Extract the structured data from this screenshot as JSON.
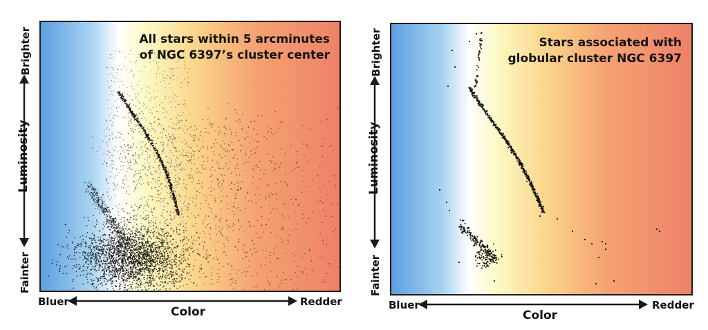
{
  "colors": {
    "gradient": [
      "#5c9fe0",
      "#a9d3f1",
      "#ffffff",
      "#fdf8c0",
      "#fbd48a",
      "#f5a272",
      "#ee8168"
    ],
    "stars": "#111111",
    "axis": "#1a1a1a"
  },
  "chart_data": [
    {
      "type": "scatter",
      "title": "All stars within 5 arcminutes of NGC 6397’s cluster center",
      "title_lines": [
        "All stars within 5 arcminutes",
        "of NGC 6397’s cluster center"
      ],
      "xlabel": "Color",
      "ylabel": "Luminosity",
      "x_left": "Bluer",
      "x_right": "Redder",
      "y_top": "Brighter",
      "y_bottom": "Fainter",
      "x_scale": "qualitative, blue to red",
      "y_scale": "qualitative, faint to bright",
      "grid": false,
      "features": {
        "main_sequence": "thin curved sequence from upper-left toward lower-middle",
        "white_dwarf_sequence": "faint diagonal trail at lower left",
        "field_cloud": "dense field population at lower left spreading toward red"
      }
    },
    {
      "type": "scatter",
      "title": "Stars associated with globular cluster NGC 6397",
      "title_lines": [
        "Stars associated with",
        "globular cluster NGC 6397"
      ],
      "xlabel": "Color",
      "ylabel": "Luminosity",
      "x_left": "Bluer",
      "x_right": "Redder",
      "y_top": "Brighter",
      "y_bottom": "Fainter",
      "x_scale": "qualitative, blue to red",
      "y_scale": "qualitative, faint to bright",
      "grid": false,
      "features": {
        "main_sequence": "clean narrow curved sequence",
        "white_dwarf_sequence": "short diagonal clump at lower left",
        "field_cloud": "none"
      }
    }
  ]
}
